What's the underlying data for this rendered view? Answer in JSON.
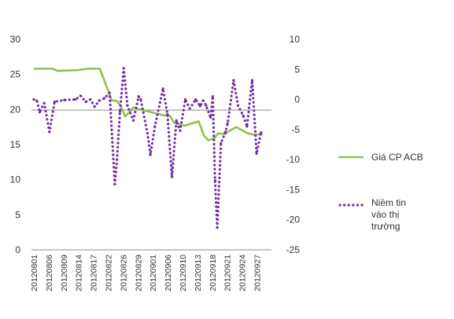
{
  "chart_data": {
    "type": "line",
    "categories": [
      "20120801",
      "20120806",
      "20120809",
      "20120814",
      "20120817",
      "20120822",
      "20120826",
      "20120829",
      "20120901",
      "20120906",
      "20120910",
      "20120913",
      "20120918",
      "20120921",
      "20120924",
      "20120927"
    ],
    "y_left": {
      "ticks": [
        "0",
        "5",
        "10",
        "15",
        "20",
        "25",
        "30"
      ],
      "lim": [
        0,
        30
      ]
    },
    "y_right": {
      "ticks": [
        "-25",
        "-20",
        "-15",
        "-10",
        "-5",
        "0",
        "5",
        "10"
      ],
      "lim": [
        -25,
        10
      ]
    },
    "grid": false,
    "legend_position": "right",
    "series": [
      {
        "name": "Giá CP ACB",
        "axis": "left",
        "color": "#92C050",
        "style": "solid",
        "points": [
          [
            0,
            25.8
          ],
          [
            2.5,
            25.8
          ],
          [
            3.2,
            25.5
          ],
          [
            5.8,
            25.6
          ],
          [
            7.2,
            25.8
          ],
          [
            8.9,
            25.8
          ],
          [
            10.5,
            21.3
          ],
          [
            11.2,
            21.2
          ],
          [
            11.7,
            20.5
          ],
          [
            12.3,
            19.0
          ],
          [
            13.4,
            20.3
          ],
          [
            14.6,
            19.9
          ],
          [
            15.5,
            19.7
          ],
          [
            16.6,
            19.4
          ],
          [
            17.3,
            19.2
          ],
          [
            18.3,
            19.1
          ],
          [
            18.9,
            18.1
          ],
          [
            20.3,
            17.7
          ],
          [
            22.2,
            18.3
          ],
          [
            22.9,
            16.3
          ],
          [
            23.5,
            15.6
          ],
          [
            24.3,
            15.9
          ],
          [
            24.8,
            16.6
          ],
          [
            25.8,
            16.5
          ],
          [
            26.2,
            16.9
          ],
          [
            27.3,
            17.5
          ],
          [
            28.8,
            16.6
          ],
          [
            29.6,
            16.4
          ],
          [
            30.8,
            16.5
          ]
        ]
      },
      {
        "name": "Niềm tin vào thị trường",
        "axis": "right",
        "color": "#7030A0",
        "style": "dotted",
        "points": [
          [
            0,
            0
          ],
          [
            0.4,
            -0.2
          ],
          [
            0.8,
            -2.1
          ],
          [
            1.4,
            -0.6
          ],
          [
            2.1,
            -5.4
          ],
          [
            2.8,
            -0.4
          ],
          [
            4.1,
            -0.1
          ],
          [
            5.6,
            0
          ],
          [
            6.3,
            0.6
          ],
          [
            7.0,
            -0.4
          ],
          [
            7.6,
            0
          ],
          [
            8.2,
            -1.2
          ],
          [
            8.8,
            -0.2
          ],
          [
            9.5,
            0.2
          ],
          [
            10.2,
            1.1
          ],
          [
            10.9,
            -14.1
          ],
          [
            11.2,
            -10
          ],
          [
            11.6,
            -2
          ],
          [
            12.1,
            5.2
          ],
          [
            12.6,
            -1
          ],
          [
            13.4,
            -3.5
          ],
          [
            14.1,
            0.5
          ],
          [
            14.4,
            0
          ],
          [
            15.3,
            -5.6
          ],
          [
            15.7,
            -9.2
          ],
          [
            16.3,
            -4.5
          ],
          [
            17.0,
            -0.5
          ],
          [
            17.4,
            1.8
          ],
          [
            18.0,
            -2.5
          ],
          [
            18.6,
            -12.9
          ],
          [
            19.2,
            -3.5
          ],
          [
            19.7,
            -5.2
          ],
          [
            20.4,
            0
          ],
          [
            21.0,
            -1.5
          ],
          [
            21.8,
            0
          ],
          [
            22.4,
            -1.1
          ],
          [
            22.8,
            -0.2
          ],
          [
            23.2,
            -1.0
          ],
          [
            23.8,
            -3.0
          ],
          [
            24.1,
            0.5
          ],
          [
            24.4,
            -13.5
          ],
          [
            24.7,
            -21.3
          ],
          [
            25.2,
            -7.3
          ],
          [
            25.8,
            -5.4
          ],
          [
            26.1,
            -4.0
          ],
          [
            26.9,
            3.2
          ],
          [
            27.5,
            -1.0
          ],
          [
            28.2,
            -2.7
          ],
          [
            28.7,
            -4.5
          ],
          [
            29.4,
            3.2
          ],
          [
            30.0,
            -9
          ],
          [
            30.6,
            -5.5
          ]
        ]
      }
    ],
    "legend": [
      {
        "series": 0,
        "lines": [
          "Giá CP ACB"
        ]
      },
      {
        "series": 1,
        "lines": [
          "Niềm tin",
          "vào thị",
          "trường"
        ]
      }
    ]
  }
}
